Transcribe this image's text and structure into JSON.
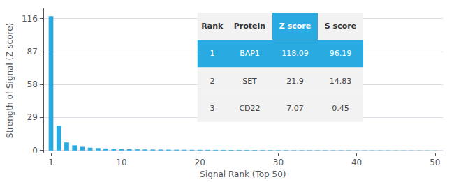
{
  "chart_data": {
    "type": "bar",
    "xlabel": "Signal Rank (Top 50)",
    "ylabel": "Strength of Signal (Z score)",
    "x": [
      1,
      2,
      3,
      4,
      5,
      6,
      7,
      8,
      9,
      10,
      11,
      12,
      13,
      14,
      15,
      16,
      17,
      18,
      19,
      20,
      21,
      22,
      23,
      24,
      25,
      26,
      27,
      28,
      29,
      30,
      31,
      32,
      33,
      34,
      35,
      36,
      37,
      38,
      39,
      40,
      41,
      42,
      43,
      44,
      45,
      46,
      47,
      48,
      49,
      50
    ],
    "values": [
      118.09,
      21.9,
      7.07,
      4.5,
      3.2,
      2.5,
      2.1,
      1.8,
      1.5,
      1.3,
      1.1,
      1.0,
      0.9,
      0.85,
      0.8,
      0.75,
      0.7,
      0.65,
      0.6,
      0.57,
      0.54,
      0.51,
      0.48,
      0.46,
      0.44,
      0.42,
      0.4,
      0.38,
      0.36,
      0.34,
      0.32,
      0.3,
      0.29,
      0.28,
      0.27,
      0.26,
      0.25,
      0.24,
      0.23,
      0.22,
      0.21,
      0.2,
      0.19,
      0.18,
      0.17,
      0.16,
      0.15,
      0.14,
      0.13,
      0.12
    ],
    "color": "#29ABE2",
    "xlim": [
      0,
      51
    ],
    "xticks": [
      1,
      10,
      20,
      30,
      40,
      50
    ],
    "ylim": [
      -2,
      125
    ],
    "yticks": [
      0,
      29,
      58,
      87,
      116
    ],
    "grid": true,
    "table": {
      "headers": [
        "Rank",
        "Protein",
        "Z score",
        "S score"
      ],
      "rows": [
        [
          "1",
          "BAP1",
          "118.09",
          "96.19"
        ],
        [
          "2",
          "SET",
          "21.9",
          "14.83"
        ],
        [
          "3",
          "CD22",
          "7.07",
          "0.45"
        ]
      ],
      "color": "#29ABE2"
    }
  }
}
